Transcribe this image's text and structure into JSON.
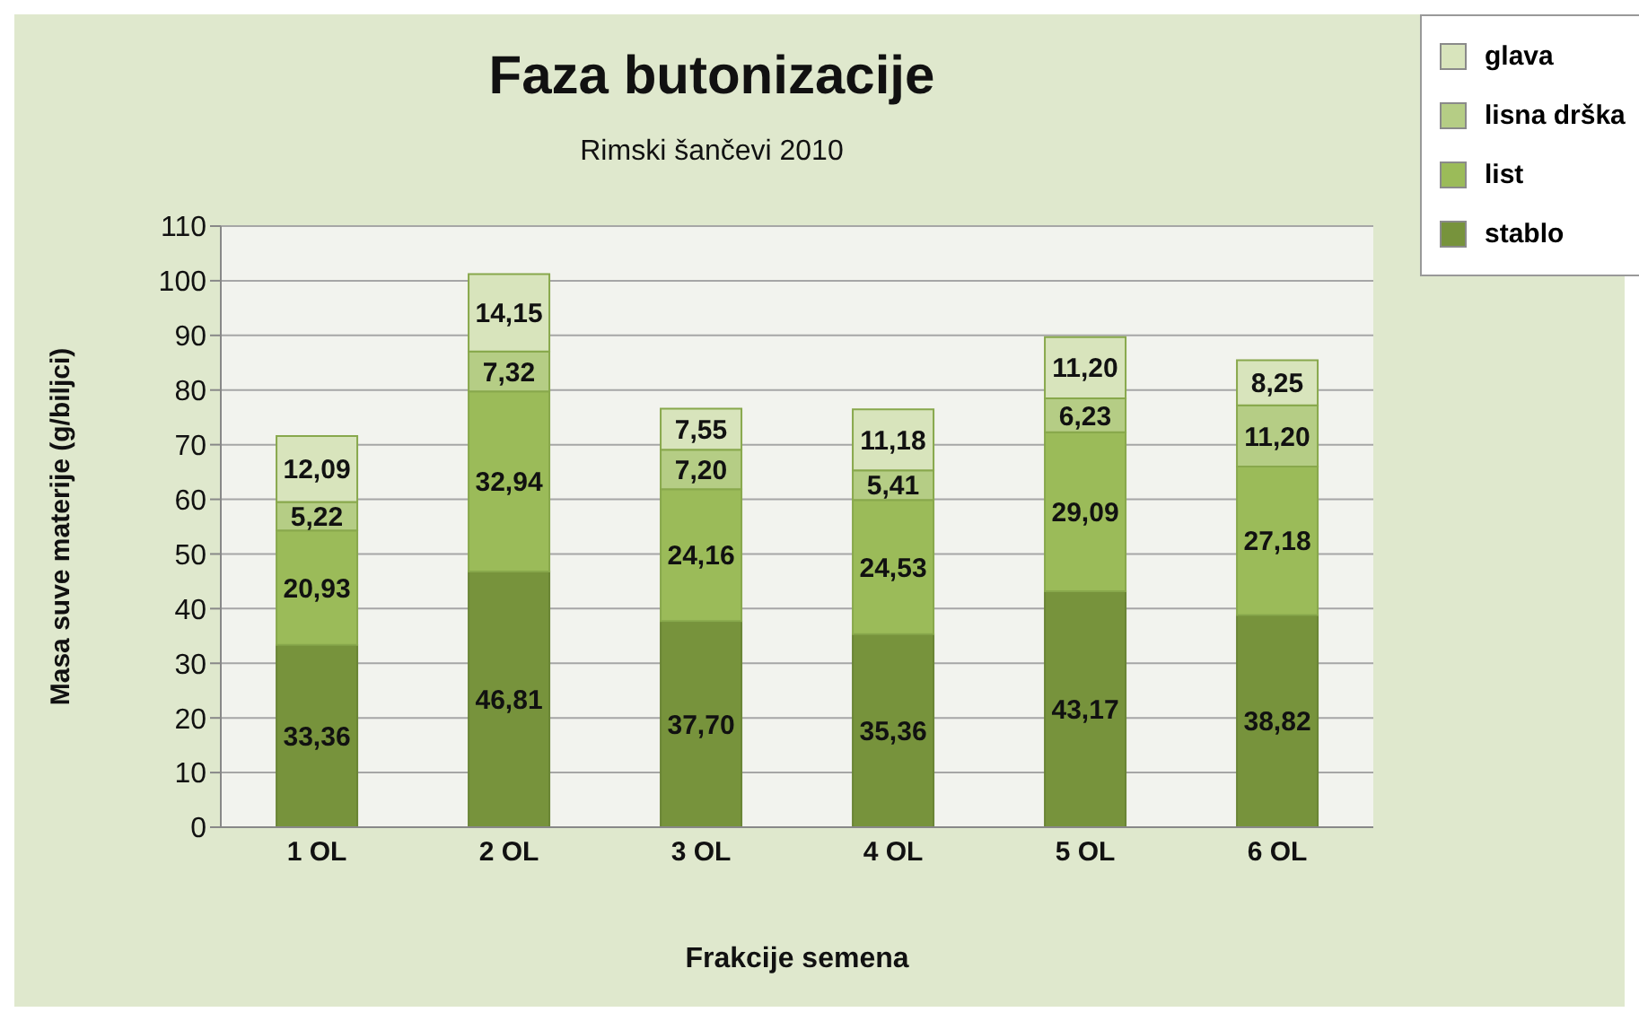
{
  "chart_data": {
    "type": "bar",
    "title": "Faza butonizacije",
    "subtitle": "Rimski šančevi 2010",
    "xlabel": "Frakcije semena",
    "ylabel": "Masa suve materije (g/biljci)",
    "categories": [
      "1 OL",
      "2 OL",
      "3 OL",
      "4 OL",
      "5 OL",
      "6 OL"
    ],
    "series": [
      {
        "name": "stablo",
        "color": "#77933c",
        "values": [
          33.36,
          46.81,
          37.7,
          35.36,
          43.17,
          38.82
        ],
        "value_labels": [
          "33,36",
          "46,81",
          "37,70",
          "35,36",
          "43,17",
          "38,82"
        ]
      },
      {
        "name": "list",
        "color": "#9bbb59",
        "values": [
          20.93,
          32.94,
          24.16,
          24.53,
          29.09,
          27.18
        ],
        "value_labels": [
          "20,93",
          "32,94",
          "24,16",
          "24,53",
          "29,09",
          "27,18"
        ]
      },
      {
        "name": "lisna drška",
        "color": "#b5cd85",
        "values": [
          5.22,
          7.32,
          7.2,
          5.41,
          6.23,
          11.2
        ],
        "value_labels": [
          "5,22",
          "7,32",
          "7,20",
          "5,41",
          "6,23",
          "11,20"
        ]
      },
      {
        "name": "glava",
        "color": "#d8e4bc",
        "values": [
          12.09,
          14.15,
          7.55,
          11.18,
          11.2,
          8.25
        ],
        "value_labels": [
          "12,09",
          "14,15",
          "7,55",
          "11,18",
          "11,20",
          "8,25"
        ]
      }
    ],
    "stacked": true,
    "ylim": [
      0,
      110
    ],
    "yticks": [
      0,
      10,
      20,
      30,
      40,
      50,
      60,
      70,
      80,
      90,
      100,
      110
    ],
    "grid": "y",
    "legend": "top right"
  }
}
